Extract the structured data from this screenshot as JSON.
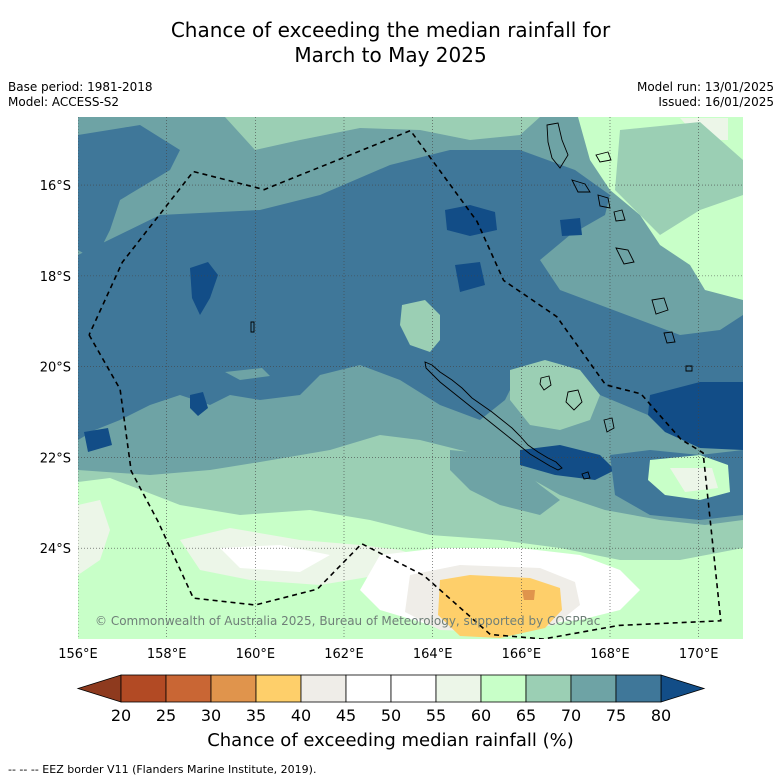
{
  "title_line1": "Chance of exceeding the median rainfall for",
  "title_line2": "March to May 2025",
  "base_period": "Base period: 1981-2018",
  "model": "Model: ACCESS-S2",
  "model_run": "Model run: 13/01/2025",
  "issued": "Issued: 16/01/2025",
  "copyright": "© Commonwealth of Australia 2025, Bureau of Meteorology, supported by COSPPac",
  "colorbar_label": "Chance of exceeding median rainfall (%)",
  "footnote": "-- -- -- EEZ border V11 (Flanders Marine Institute, 2019).",
  "map": {
    "lon_range": [
      156,
      171
    ],
    "lat_range": [
      -26.0,
      -14.5
    ],
    "lon_ticks": [
      {
        "v": 156,
        "t": "156°E"
      },
      {
        "v": 158,
        "t": "158°E"
      },
      {
        "v": 160,
        "t": "160°E"
      },
      {
        "v": 162,
        "t": "162°E"
      },
      {
        "v": 164,
        "t": "164°E"
      },
      {
        "v": 166,
        "t": "166°E"
      },
      {
        "v": 168,
        "t": "168°E"
      },
      {
        "v": 170,
        "t": "170°E"
      }
    ],
    "lat_ticks": [
      {
        "v": -16,
        "t": "16°S"
      },
      {
        "v": -18,
        "t": "18°S"
      },
      {
        "v": -20,
        "t": "20°S"
      },
      {
        "v": -22,
        "t": "22°S"
      },
      {
        "v": -24,
        "t": "24°S"
      }
    ],
    "eez_border": [
      [
        156.25,
        -19.3
      ],
      [
        156.95,
        -20.5
      ],
      [
        157.2,
        -22.3
      ],
      [
        157.8,
        -23.4
      ],
      [
        158.6,
        -25.1
      ],
      [
        160.0,
        -25.25
      ],
      [
        161.4,
        -24.9
      ],
      [
        162.4,
        -23.9
      ],
      [
        163.8,
        -24.6
      ],
      [
        165.3,
        -25.9
      ],
      [
        166.5,
        -26.0
      ],
      [
        168.2,
        -25.7
      ],
      [
        170.5,
        -25.6
      ],
      [
        170.1,
        -21.9
      ],
      [
        169.6,
        -21.6
      ],
      [
        168.7,
        -20.6
      ],
      [
        167.9,
        -20.4
      ],
      [
        166.8,
        -18.9
      ],
      [
        165.6,
        -18.1
      ],
      [
        165.0,
        -16.8
      ],
      [
        163.5,
        -14.8
      ],
      [
        160.2,
        -16.1
      ],
      [
        158.6,
        -15.7
      ],
      [
        157.0,
        -17.7
      ],
      [
        156.25,
        -19.3
      ]
    ]
  },
  "colorbar": {
    "levels": [
      20,
      25,
      30,
      35,
      40,
      45,
      50,
      55,
      60,
      65,
      70,
      75,
      80
    ],
    "colors": [
      "#b24a24",
      "#c96634",
      "#e0944c",
      "#fecf6a",
      "#efede8",
      "#ffffff",
      "#ffffff",
      "#ecf6e8",
      "#c8ffc8",
      "#9bcfb4",
      "#6ea3a5",
      "#3f7799"
    ],
    "under_color": "#8e3a1e",
    "over_color": "#124d87"
  }
}
